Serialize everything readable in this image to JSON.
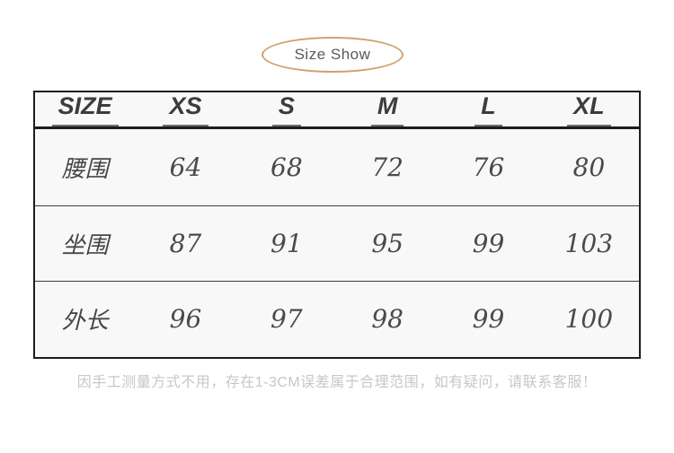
{
  "badge": {
    "label": "Size Show",
    "accent_color": "#cfa06c"
  },
  "chart_data": {
    "type": "table",
    "title": "Size Show",
    "columns": [
      "SIZE",
      "XS",
      "S",
      "M",
      "L",
      "XL"
    ],
    "rows": [
      {
        "label": "腰围",
        "values": [
          "64",
          "68",
          "72",
          "76",
          "80"
        ]
      },
      {
        "label": "坐围",
        "values": [
          "87",
          "91",
          "95",
          "99",
          "103"
        ]
      },
      {
        "label": "外长",
        "values": [
          "96",
          "97",
          "98",
          "99",
          "100"
        ]
      }
    ],
    "note": "因手工测量方式不用，存在1-3CM误差属于合理范围，如有疑问，请联系客服！"
  },
  "colors": {
    "accent": "#cfa06c",
    "table_background": "#f8f8f8",
    "table_border": "#1c1c1c",
    "header_text": "#3c3c3c",
    "body_text": "#4a4a4a",
    "note_text": "#c7c7c7"
  }
}
